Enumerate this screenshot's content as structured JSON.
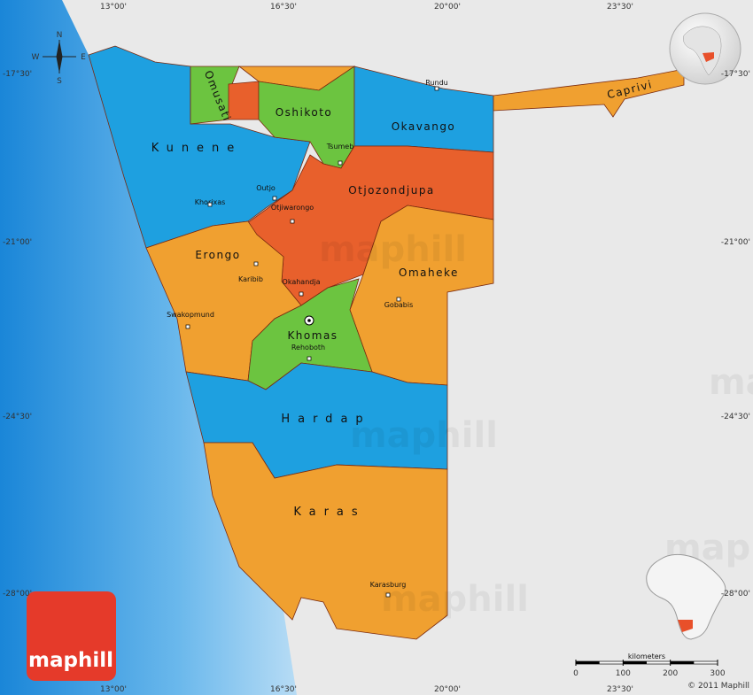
{
  "coordinates": {
    "top": [
      "13°00'",
      "16°30'",
      "20°00'",
      "23°30'"
    ],
    "bottom": [
      "13°00'",
      "16°30'",
      "20°00'",
      "23°30'"
    ],
    "left": [
      "-17°30'",
      "-21°00'",
      "-24°30'",
      "-28°00'"
    ],
    "right": [
      "-17°30'",
      "-21°00'",
      "-24°30'",
      "-28°00'"
    ]
  },
  "compass": {
    "north": "N",
    "south": "S",
    "west": "W",
    "east": "E"
  },
  "regions": {
    "omusati": "Omusati",
    "oshikoto": "Oshikoto",
    "okavango": "Okavango",
    "caprivi": "Caprivi",
    "kunene": "Kunene",
    "otjozondjupa": "Otjozondjupa",
    "erongo": "Erongo",
    "omaheke": "Omaheke",
    "khomas": "Khomas",
    "hardap": "Hardap",
    "karas": "Karas"
  },
  "cities": {
    "rundu": "Rundu",
    "tsumeb": "Tsumeb",
    "outjo": "Outjo",
    "khorixas": "Khorixas",
    "otjiwarongo": "Otjiwarongo",
    "karibib": "Karibib",
    "okahandja": "Okahandja",
    "swakopmund": "Swakopmund",
    "gobabis": "Gobabis",
    "rehoboth": "Rehoboth",
    "karasburg": "Karasburg"
  },
  "scale": {
    "title": "kilometers",
    "ticks": [
      0,
      100,
      200,
      300
    ]
  },
  "watermark": "maphill",
  "logo": "maphill",
  "copyright": "© 2011 Maphill"
}
